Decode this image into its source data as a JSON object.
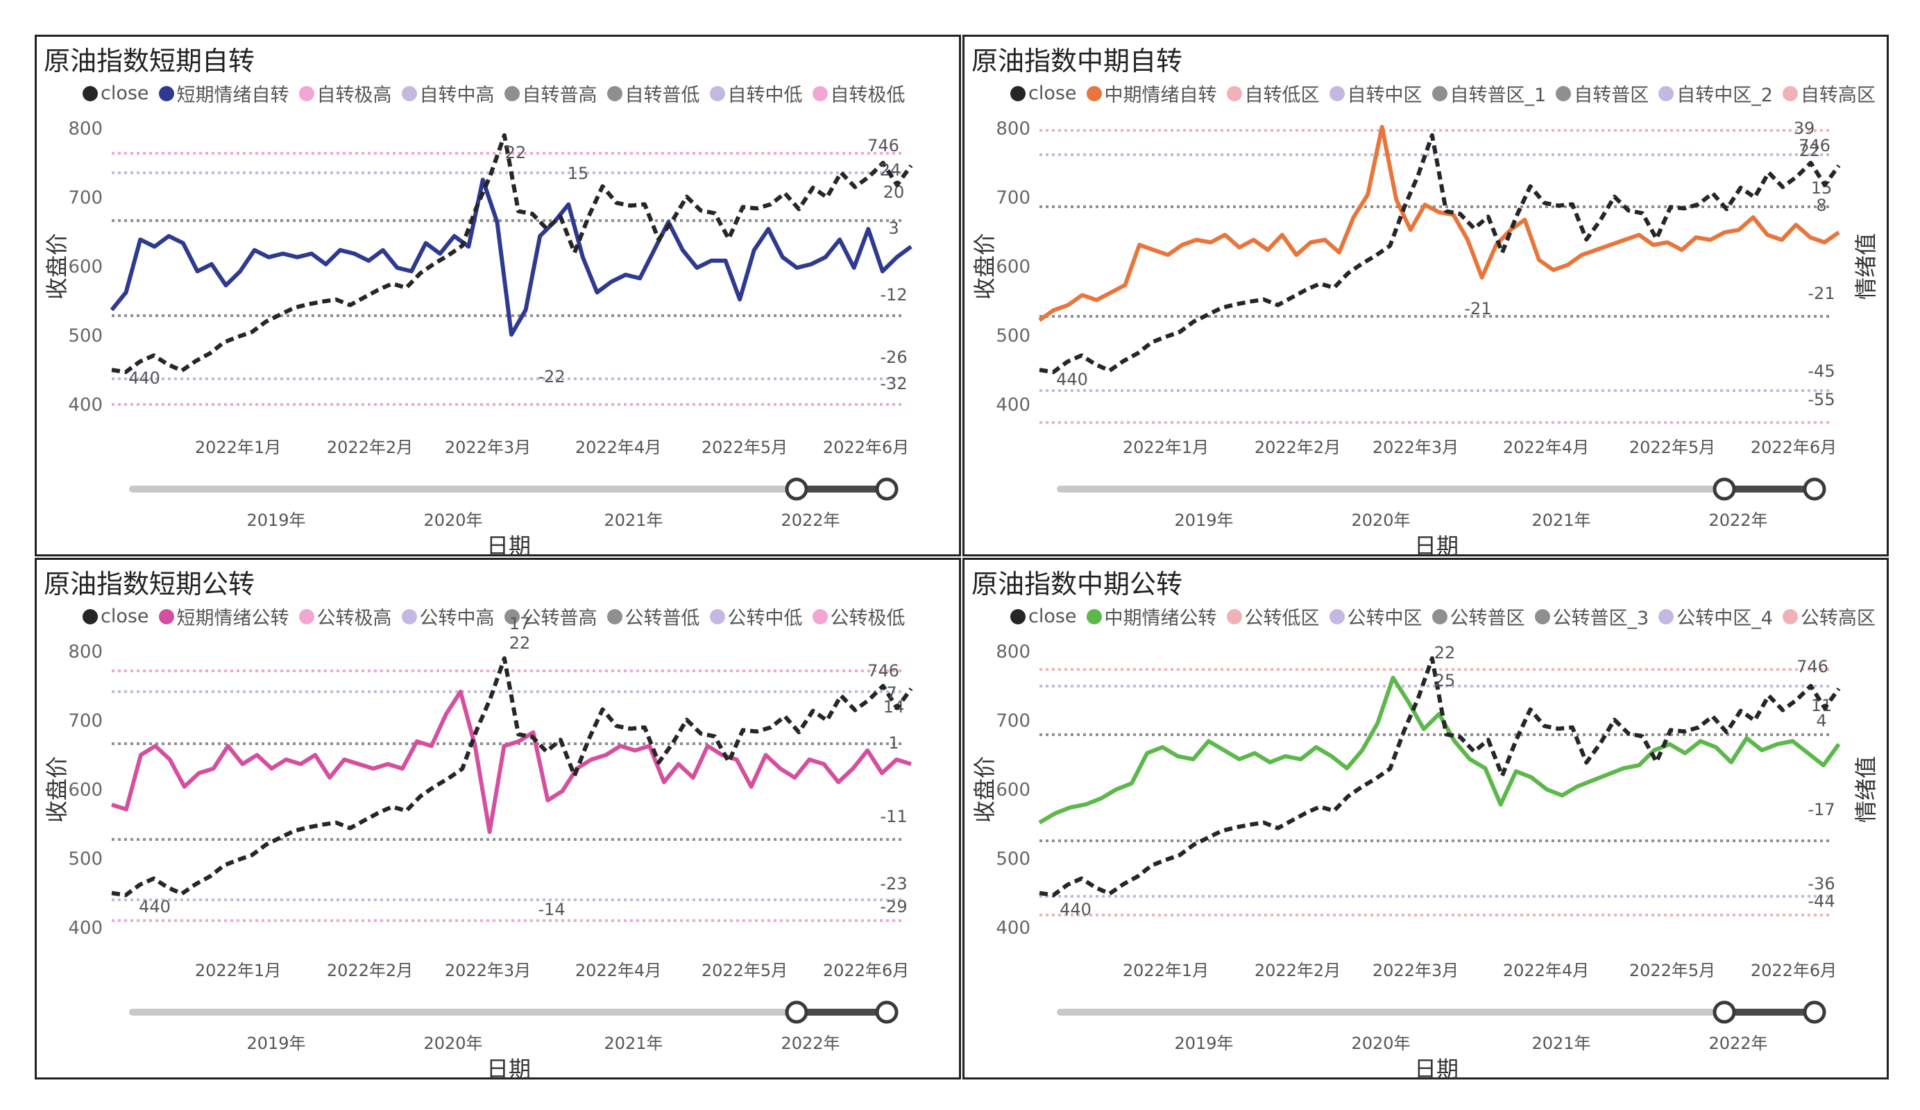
{
  "panels": [
    {
      "title": "原油指数短期自转",
      "line_color": "#2e3a8f",
      "legend": [
        {
          "label": "close",
          "color": "#262626"
        },
        {
          "label": "短期情绪自转",
          "color": "#2e3a8f"
        },
        {
          "label": "自转极高",
          "color": "#f2a6d4"
        },
        {
          "label": "自转中高",
          "color": "#c4b8e0"
        },
        {
          "label": "自转普高",
          "color": "#8f8f8f"
        },
        {
          "label": "自转普低",
          "color": "#8f8f8f"
        },
        {
          "label": "自转中低",
          "color": "#c4b8e0"
        },
        {
          "label": "自转极低",
          "color": "#f2a6d4"
        }
      ],
      "y_ticks": [
        "800",
        "700",
        "600",
        "500",
        "400"
      ],
      "y_label": "收盘价",
      "y2_label": "",
      "x_ticks": [
        "2022年1月",
        "2022年2月",
        "2022年3月",
        "2022年4月",
        "2022年5月",
        "2022年6月"
      ],
      "slider_ticks": [
        "2019年",
        "2020年",
        "2021年",
        "2022年"
      ],
      "x_label": "日期",
      "band_labels": [
        "20",
        "3",
        "-12",
        "-26",
        "-32"
      ],
      "band_colors": [
        "#f2a6d4",
        "#c4b8e0",
        "#8f8f8f",
        "#8f8f8f",
        "#c4b8e0",
        "#f2a6d4"
      ],
      "annotations": [
        "746",
        "24",
        "22",
        "15",
        "-22",
        "440"
      ]
    },
    {
      "title": "原油指数中期自转",
      "line_color": "#e8763c",
      "legend": [
        {
          "label": "close",
          "color": "#262626"
        },
        {
          "label": "中期情绪自转",
          "color": "#e8763c"
        },
        {
          "label": "自转低区",
          "color": "#f0b2b6"
        },
        {
          "label": "自转中区",
          "color": "#c4b8e0"
        },
        {
          "label": "自转普区_1",
          "color": "#8f8f8f"
        },
        {
          "label": "自转普区",
          "color": "#8f8f8f"
        },
        {
          "label": "自转中区_2",
          "color": "#c4b8e0"
        },
        {
          "label": "自转高区",
          "color": "#f0b2b6"
        }
      ],
      "y_ticks": [
        "800",
        "700",
        "600",
        "500",
        "400"
      ],
      "y_label": "收盘价",
      "y2_label": "情绪值",
      "x_ticks": [
        "2022年1月",
        "2022年2月",
        "2022年3月",
        "2022年4月",
        "2022年5月",
        "2022年6月"
      ],
      "slider_ticks": [
        "2019年",
        "2020年",
        "2021年",
        "2022年"
      ],
      "x_label": "日期",
      "band_labels": [
        "15",
        "8",
        "-21",
        "-45",
        "-55"
      ],
      "band_colors": [
        "#f0b2b6",
        "#c4b8e0",
        "#8f8f8f",
        "#8f8f8f",
        "#c4b8e0",
        "#f0b2b6"
      ],
      "annotations": [
        "746",
        "39",
        "22",
        "-21",
        "440"
      ]
    },
    {
      "title": "原油指数短期公转",
      "line_color": "#d4509e",
      "legend": [
        {
          "label": "close",
          "color": "#262626"
        },
        {
          "label": "短期情绪公转",
          "color": "#d4509e"
        },
        {
          "label": "公转极高",
          "color": "#f2a6d4"
        },
        {
          "label": "公转中高",
          "color": "#c4b8e0"
        },
        {
          "label": "公转普高",
          "color": "#8f8f8f"
        },
        {
          "label": "公转普低",
          "color": "#8f8f8f"
        },
        {
          "label": "公转中低",
          "color": "#c4b8e0"
        },
        {
          "label": "公转极低",
          "color": "#f2a6d4"
        }
      ],
      "y_ticks": [
        "800",
        "700",
        "600",
        "500",
        "400"
      ],
      "y_label": "收盘价",
      "y2_label": "",
      "x_ticks": [
        "2022年1月",
        "2022年2月",
        "2022年3月",
        "2022年4月",
        "2022年5月",
        "2022年6月"
      ],
      "slider_ticks": [
        "2019年",
        "2020年",
        "2021年",
        "2022年"
      ],
      "x_label": "日期",
      "band_labels": [
        "14",
        "1",
        "-11",
        "-23",
        "-29"
      ],
      "band_colors": [
        "#f2a6d4",
        "#c4b8e0",
        "#8f8f8f",
        "#8f8f8f",
        "#c4b8e0",
        "#f2a6d4"
      ],
      "annotations": [
        "746",
        "7",
        "17",
        "22",
        "-14",
        "440"
      ]
    },
    {
      "title": "原油指数中期公转",
      "line_color": "#5cb84a",
      "legend": [
        {
          "label": "close",
          "color": "#262626"
        },
        {
          "label": "中期情绪公转",
          "color": "#5cb84a"
        },
        {
          "label": "公转低区",
          "color": "#f0b2b6"
        },
        {
          "label": "公转中区",
          "color": "#c4b8e0"
        },
        {
          "label": "公转普区",
          "color": "#8f8f8f"
        },
        {
          "label": "公转普区_3",
          "color": "#8f8f8f"
        },
        {
          "label": "公转中区_4",
          "color": "#c4b8e0"
        },
        {
          "label": "公转高区",
          "color": "#f0b2b6"
        }
      ],
      "y_ticks": [
        "800",
        "700",
        "600",
        "500",
        "400"
      ],
      "y_label": "收盘价",
      "y2_label": "情绪值",
      "x_ticks": [
        "2022年1月",
        "2022年2月",
        "2022年3月",
        "2022年4月",
        "2022年5月",
        "2022年6月"
      ],
      "slider_ticks": [
        "2019年",
        "2020年",
        "2021年",
        "2022年"
      ],
      "x_label": "日期",
      "band_labels": [
        "11",
        "4",
        "-17",
        "-36",
        "-44"
      ],
      "band_colors": [
        "#f0b2b6",
        "#c4b8e0",
        "#8f8f8f",
        "#8f8f8f",
        "#c4b8e0",
        "#f0b2b6"
      ],
      "annotations": [
        "746",
        "22",
        "25",
        "440"
      ]
    }
  ],
  "chart_data": [
    {
      "type": "line",
      "title": "原油指数短期自转",
      "ylabel": "收盘价",
      "xlabel": "日期",
      "ylim": [
        385,
        810
      ],
      "series": [
        {
          "name": "close",
          "values": [
            450,
            447,
            462,
            471,
            458,
            449,
            463,
            474,
            490,
            498,
            505,
            520,
            530,
            540,
            545,
            549,
            552,
            544,
            555,
            566,
            575,
            569,
            590,
            604,
            616,
            630,
            685,
            732,
            790,
            680,
            676,
            655,
            672,
            620,
            672,
            716,
            692,
            688,
            690,
            639,
            667,
            701,
            681,
            677,
            640,
            686,
            684,
            690,
            706,
            683,
            714,
            700,
            736,
            715,
            730,
            750,
            718,
            746
          ]
        },
        {
          "name": "短期情绪自转",
          "values": [
            -15,
            -10,
            5,
            3,
            6,
            4,
            -4,
            -2,
            -8,
            -4,
            2,
            0,
            1,
            0,
            1,
            -2,
            2,
            1,
            -1,
            2,
            -3,
            -4,
            4,
            1,
            6,
            3,
            22,
            10,
            -22,
            -15,
            6,
            10,
            15,
            0,
            -10,
            -7,
            -5,
            -6,
            2,
            10,
            2,
            -3,
            -1,
            -1,
            -12,
            2,
            8,
            0,
            -3,
            -2,
            0,
            5,
            -3,
            8,
            -4,
            0,
            3
          ]
        }
      ]
    },
    {
      "type": "line",
      "title": "原油指数中期自转",
      "ylabel": "收盘价",
      "y2label": "情绪值",
      "xlabel": "日期",
      "ylim": [
        385,
        810
      ],
      "series": [
        {
          "name": "close",
          "values": [
            450,
            447,
            462,
            471,
            458,
            449,
            463,
            474,
            490,
            498,
            505,
            520,
            530,
            540,
            545,
            549,
            552,
            544,
            555,
            566,
            575,
            569,
            590,
            604,
            616,
            630,
            685,
            732,
            790,
            680,
            676,
            655,
            672,
            620,
            672,
            716,
            692,
            688,
            690,
            639,
            667,
            701,
            681,
            677,
            640,
            686,
            684,
            690,
            706,
            683,
            714,
            700,
            736,
            715,
            730,
            750,
            718,
            746
          ]
        },
        {
          "name": "中期情绪自转",
          "values": [
            -38,
            -34,
            -32,
            -28,
            -30,
            -27,
            -24,
            -8,
            -10,
            -12,
            -8,
            -6,
            -7,
            -4,
            -9,
            -6,
            -10,
            -4,
            -12,
            -7,
            -6,
            -11,
            3,
            12,
            39,
            10,
            -2,
            8,
            5,
            4,
            -6,
            -21,
            -8,
            -2,
            2,
            -14,
            -18,
            -16,
            -12,
            -10,
            -8,
            -6,
            -4,
            -8,
            -7,
            -10,
            -5,
            -6,
            -3,
            -2,
            3,
            -4,
            -6,
            0,
            -5,
            -7,
            -3
          ]
        }
      ]
    },
    {
      "type": "line",
      "title": "原油指数短期公转",
      "ylabel": "收盘价",
      "xlabel": "日期",
      "ylim": [
        385,
        810
      ],
      "series": [
        {
          "name": "close",
          "values": [
            450,
            447,
            462,
            471,
            458,
            449,
            463,
            474,
            490,
            498,
            505,
            520,
            530,
            540,
            545,
            549,
            552,
            544,
            555,
            566,
            575,
            569,
            590,
            604,
            616,
            630,
            685,
            732,
            790,
            680,
            676,
            655,
            672,
            620,
            672,
            716,
            692,
            688,
            690,
            639,
            667,
            701,
            681,
            677,
            640,
            686,
            684,
            690,
            706,
            683,
            714,
            700,
            736,
            715,
            730,
            750,
            718,
            746
          ]
        },
        {
          "name": "短期情绪公转",
          "values": [
            -8,
            -9,
            3,
            5,
            2,
            -4,
            -1,
            0,
            5,
            1,
            3,
            0,
            2,
            1,
            3,
            -2,
            2,
            1,
            0,
            1,
            0,
            6,
            5,
            12,
            17,
            5,
            -14,
            5,
            6,
            8,
            -7,
            -5,
            0,
            2,
            3,
            5,
            4,
            5,
            -3,
            1,
            -2,
            5,
            3,
            2,
            -4,
            3,
            0,
            -2,
            2,
            1,
            -3,
            0,
            4,
            -1,
            2,
            1
          ]
        }
      ]
    },
    {
      "type": "line",
      "title": "原油指数中期公转",
      "ylabel": "收盘价",
      "y2label": "情绪值",
      "xlabel": "日期",
      "ylim": [
        385,
        810
      ],
      "series": [
        {
          "name": "close",
          "values": [
            450,
            447,
            462,
            471,
            458,
            449,
            463,
            474,
            490,
            498,
            505,
            520,
            530,
            540,
            545,
            549,
            552,
            544,
            555,
            566,
            575,
            569,
            590,
            604,
            616,
            630,
            685,
            732,
            790,
            680,
            676,
            655,
            672,
            620,
            672,
            716,
            692,
            688,
            690,
            639,
            667,
            701,
            681,
            677,
            640,
            686,
            684,
            690,
            706,
            683,
            714,
            700,
            736,
            715,
            730,
            750,
            718,
            746
          ]
        },
        {
          "name": "中期情绪公转",
          "values": [
            -23,
            -20,
            -18,
            -17,
            -15,
            -12,
            -10,
            0,
            2,
            -1,
            -2,
            4,
            1,
            -2,
            0,
            -3,
            -1,
            -2,
            2,
            -1,
            -5,
            1,
            10,
            25,
            17,
            8,
            13,
            4,
            -2,
            -5,
            -17,
            -6,
            -8,
            -12,
            -14,
            -11,
            -9,
            -7,
            -5,
            -4,
            1,
            3,
            0,
            4,
            2,
            -3,
            5,
            1,
            3,
            4,
            0,
            -4,
            3
          ]
        }
      ]
    }
  ]
}
